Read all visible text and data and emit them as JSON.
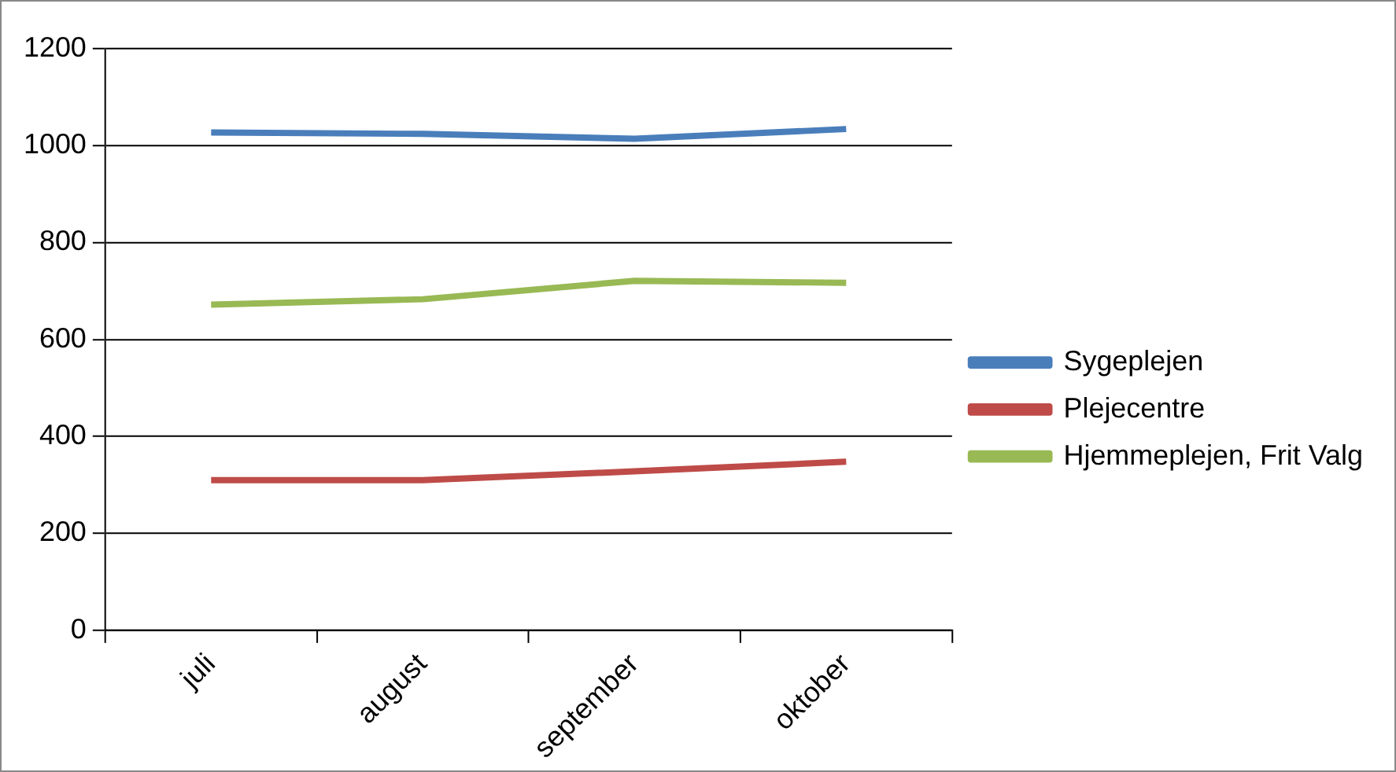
{
  "chart_data": {
    "type": "line",
    "categories": [
      "juli",
      "august",
      "september",
      "oktober"
    ],
    "series": [
      {
        "name": "Sygeplejen",
        "color": "#4a7ebb",
        "values": [
          1027,
          1024,
          1014,
          1034
        ]
      },
      {
        "name": "Plejecentre",
        "color": "#be4b48",
        "values": [
          310,
          310,
          328,
          348
        ]
      },
      {
        "name": "Hjemmeplejen, Frit Valg",
        "color": "#98b954",
        "values": [
          672,
          683,
          721,
          717
        ]
      }
    ],
    "ylim": [
      0,
      1200
    ],
    "yticks": [
      0,
      200,
      400,
      600,
      800,
      1000,
      1200
    ],
    "grid": "y",
    "legend": "right",
    "marker": "none",
    "line_style": "solid"
  }
}
